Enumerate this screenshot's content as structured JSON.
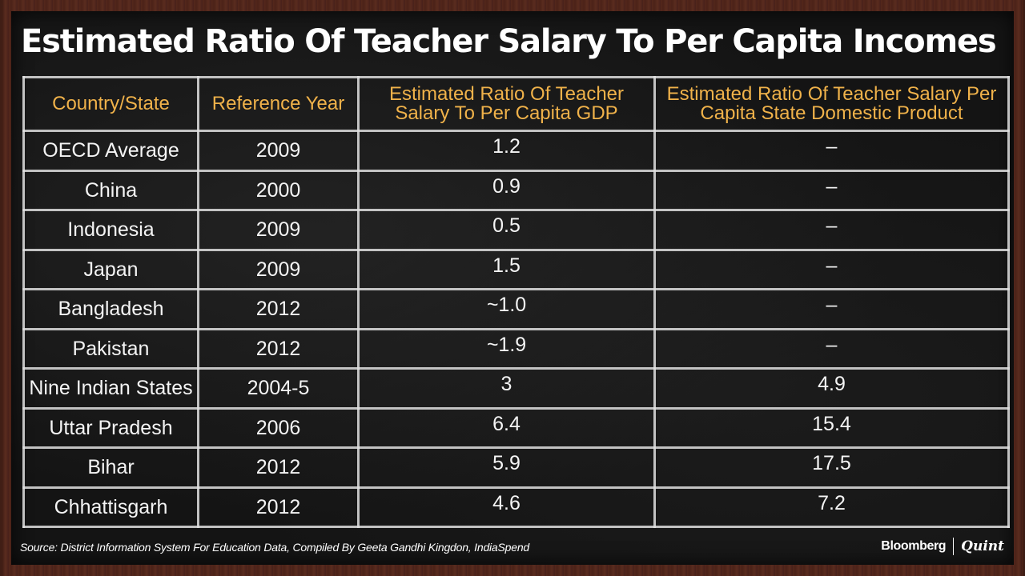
{
  "title": "Estimated Ratio Of Teacher Salary To Per Capita Incomes",
  "source": "Source: District Information System For Education Data, Compiled By Geeta Gandhi Kingdon, IndiaSpend",
  "brand": {
    "primary": "Bloomberg",
    "secondary": "Quint"
  },
  "colors": {
    "header_text": "#f0b24a",
    "body_text": "#f4f4f4",
    "board": "#141414",
    "frame": "#4a2218"
  },
  "chart_data": {
    "type": "table",
    "title": "Estimated Ratio Of Teacher Salary To Per Capita Incomes",
    "columns": [
      "Country/State",
      "Reference Year",
      "Estimated Ratio Of Teacher Salary To Per Capita GDP",
      "Estimated Ratio Of Teacher Salary Per Capita State Domestic Product"
    ],
    "rows": [
      [
        "OECD Average",
        "2009",
        "1.2",
        "–"
      ],
      [
        "China",
        "2000",
        "0.9",
        "–"
      ],
      [
        "Indonesia",
        "2009",
        "0.5",
        "–"
      ],
      [
        "Japan",
        "2009",
        "1.5",
        "–"
      ],
      [
        "Bangladesh",
        "2012",
        "~1.0",
        "–"
      ],
      [
        "Pakistan",
        "2012",
        "~1.9",
        "–"
      ],
      [
        "Nine Indian States",
        "2004-5",
        "3",
        "4.9"
      ],
      [
        "Uttar Pradesh",
        "2006",
        "6.4",
        "15.4"
      ],
      [
        "Bihar",
        "2012",
        "5.9",
        "17.5"
      ],
      [
        "Chhattisgarh",
        "2012",
        "4.6",
        "7.2"
      ]
    ]
  }
}
